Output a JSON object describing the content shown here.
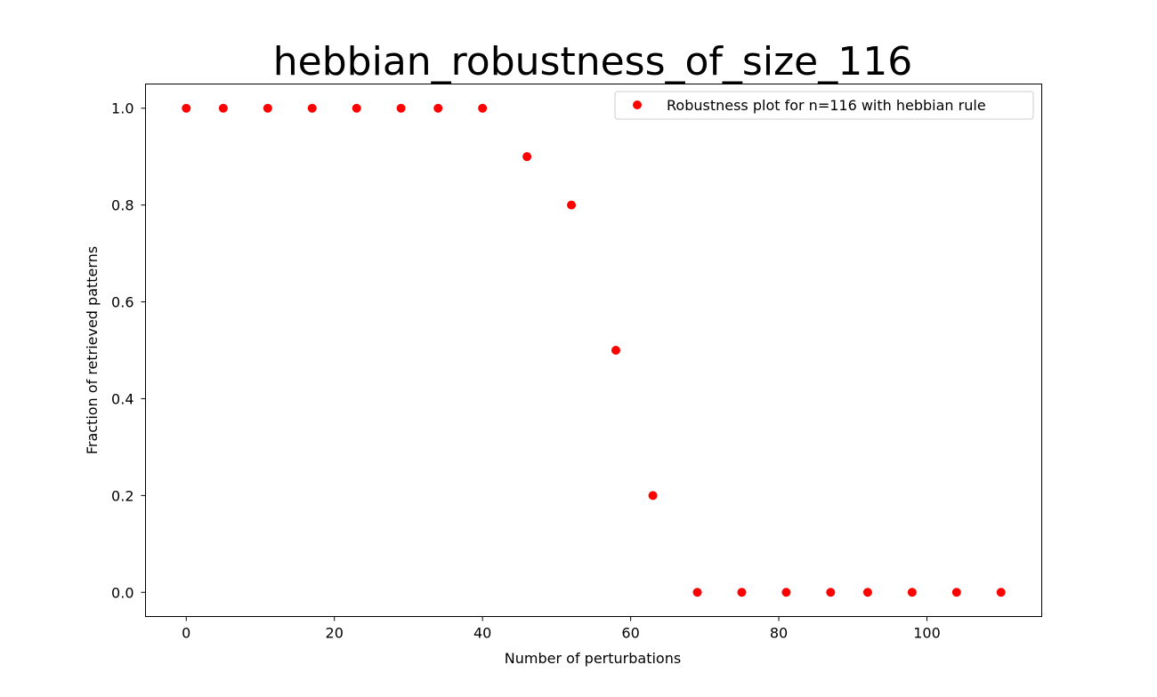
{
  "chart_data": {
    "type": "scatter",
    "title": "hebbian_robustness_of_size_116",
    "xlabel": "Number of perturbations",
    "ylabel": "Fraction of retrieved patterns",
    "xlim": [
      -5.5,
      115.5
    ],
    "ylim": [
      -0.05,
      1.05
    ],
    "xticks": [
      0,
      20,
      40,
      60,
      80,
      100
    ],
    "yticks": [
      0.0,
      0.2,
      0.4,
      0.6,
      0.8,
      1.0
    ],
    "xtick_labels": [
      "0",
      "20",
      "40",
      "60",
      "80",
      "100"
    ],
    "ytick_labels": [
      "0.0",
      "0.2",
      "0.4",
      "0.6",
      "0.8",
      "1.0"
    ],
    "grid": false,
    "legend_position": "upper right",
    "series": [
      {
        "name": "Robustness plot for n=116 with hebbian rule",
        "color": "#ff0000",
        "marker": "circle",
        "x": [
          0,
          5,
          11,
          17,
          23,
          29,
          34,
          40,
          46,
          52,
          58,
          63,
          69,
          75,
          81,
          87,
          92,
          98,
          104,
          110
        ],
        "y": [
          1.0,
          1.0,
          1.0,
          1.0,
          1.0,
          1.0,
          1.0,
          1.0,
          0.9,
          0.8,
          0.5,
          0.2,
          0.0,
          0.0,
          0.0,
          0.0,
          0.0,
          0.0,
          0.0,
          0.0
        ]
      }
    ]
  }
}
